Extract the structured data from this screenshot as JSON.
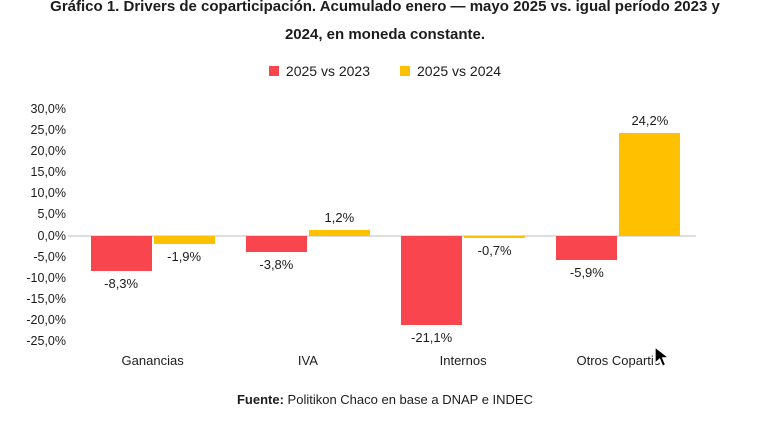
{
  "title": {
    "line1": "Gráfico 1. Drivers de coparticipación. Acumulado enero — mayo 2025 vs. igual período 2023 y",
    "line2": "2024, en moneda constante."
  },
  "source": {
    "prefix": "Fuente:",
    "text": " Politikon Chaco en base a DNAP e INDEC"
  },
  "colors": {
    "series_2023": "#F9454D",
    "series_2024": "#FFC000",
    "axis_line": "#DEDEDE",
    "text": "#1C1C1C"
  },
  "chart_data": {
    "type": "bar",
    "categories": [
      "Ganancias",
      "IVA",
      "Internos",
      "Otros Copartic"
    ],
    "series": [
      {
        "name": "2025 vs 2023",
        "color": "#F9454D",
        "values": [
          -8.3,
          -3.8,
          -21.1,
          -5.9
        ],
        "labels": [
          "-8,3%",
          "-3,8%",
          "-21,1%",
          "-5,9%"
        ]
      },
      {
        "name": "2025 vs 2024",
        "color": "#FFC000",
        "values": [
          -1.9,
          1.2,
          -0.7,
          24.2
        ],
        "labels": [
          "-1,9%",
          "1,2%",
          "-0,7%",
          "24,2%"
        ]
      }
    ],
    "ylim": [
      -25,
      30
    ],
    "ytick_values": [
      30,
      25,
      20,
      15,
      10,
      5,
      0,
      -5,
      -10,
      -15,
      -20,
      -25
    ],
    "ytick_labels": [
      "30,0%",
      "25,0%",
      "20,0%",
      "15,0%",
      "10,0%",
      "5,0%",
      "0,0%",
      "-5,0%",
      "-10,0%",
      "-15,0%",
      "-20,0%",
      "-25,0%"
    ],
    "grid": false,
    "legend_position": "top"
  }
}
